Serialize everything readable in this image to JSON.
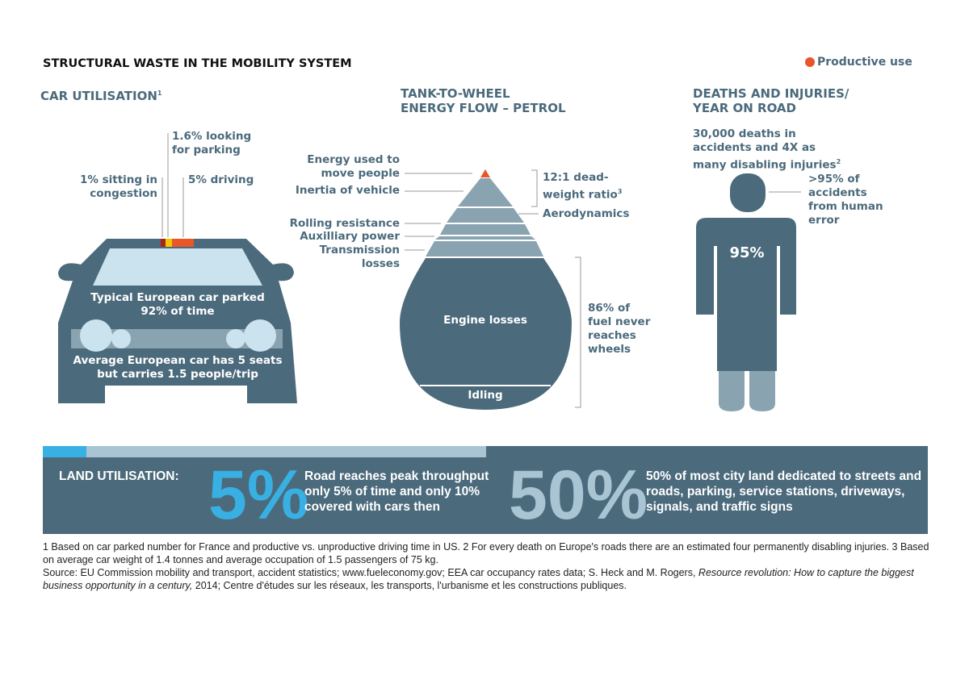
{
  "title": "STRUCTURAL WASTE IN THE MOBILITY SYSTEM",
  "legend": {
    "label": "Productive use",
    "color": "#e8562a"
  },
  "colors": {
    "dark": "#4b6a7c",
    "light": "#8aa3b1",
    "pale": "#cbe3ef",
    "cyan": "#38b0e3",
    "orange": "#e8562a",
    "yellow": "#f5c400",
    "red": "#a8231c"
  },
  "car": {
    "heading": "CAR UTILISATION",
    "heading_sup": "1",
    "looking_parking": "1.6% looking for parking",
    "congestion": "1% sitting in congestion",
    "driving": "5% driving",
    "parked": "Typical European car parked 92% of time",
    "seats": "Average European car has 5 seats but carries 1.5 people/trip"
  },
  "energy": {
    "heading_1": "TANK-TO-WHEEL",
    "heading_2": "ENERGY FLOW – PETROL",
    "move_people": "Energy used to move people",
    "inertia": "Inertia of vehicle",
    "rolling": "Rolling resistance",
    "auxiliary": "Auxilliary power",
    "transmission": "Transmission losses",
    "ratio": "12:1 dead-weight ratio",
    "ratio_sup": "3",
    "aero": "Aerodynamics",
    "engine": "Engine losses",
    "idling": "Idling",
    "never": "86% of fuel never reaches wheels"
  },
  "deaths": {
    "heading_1": "DEATHS AND INJURIES/",
    "heading_2": "YEAR ON ROAD",
    "summary": "30,000 deaths in accidents and 4X as many disabling injuries",
    "summary_sup": "2",
    "human_error": ">95% of accidents from human error",
    "pct": "95%"
  },
  "land": {
    "label": "LAND UTILISATION:",
    "pct1": "5%",
    "text1": "Road reaches peak throughput only 5% of time and only 10% covered with cars then",
    "pct2": "50%",
    "text2": "50% of most city land dedicated to streets and roads, parking, service stations, driveways, signals, and traffic signs"
  },
  "footnotes": {
    "line1": "1 Based on car parked number for France and productive vs. unproductive driving time in US.  2 For every death on Europe's roads there are an estimated four permanently disabling injuries. 3 Based on average car weight of 1.4 tonnes and average occupation of 1.5 passengers of 75 kg.",
    "source_pre": "Source: EU Commission mobility and transport, accident statistics; www.fueleconomy.gov; EEA car occupancy rates data; S. Heck and M. Rogers, ",
    "source_italic": "Resource revolution: How to capture the biggest business opportunity in a century,",
    "source_post": " 2014; Centre d'études sur les réseaux, les transports, l'urbanisme et les constructions publiques."
  }
}
